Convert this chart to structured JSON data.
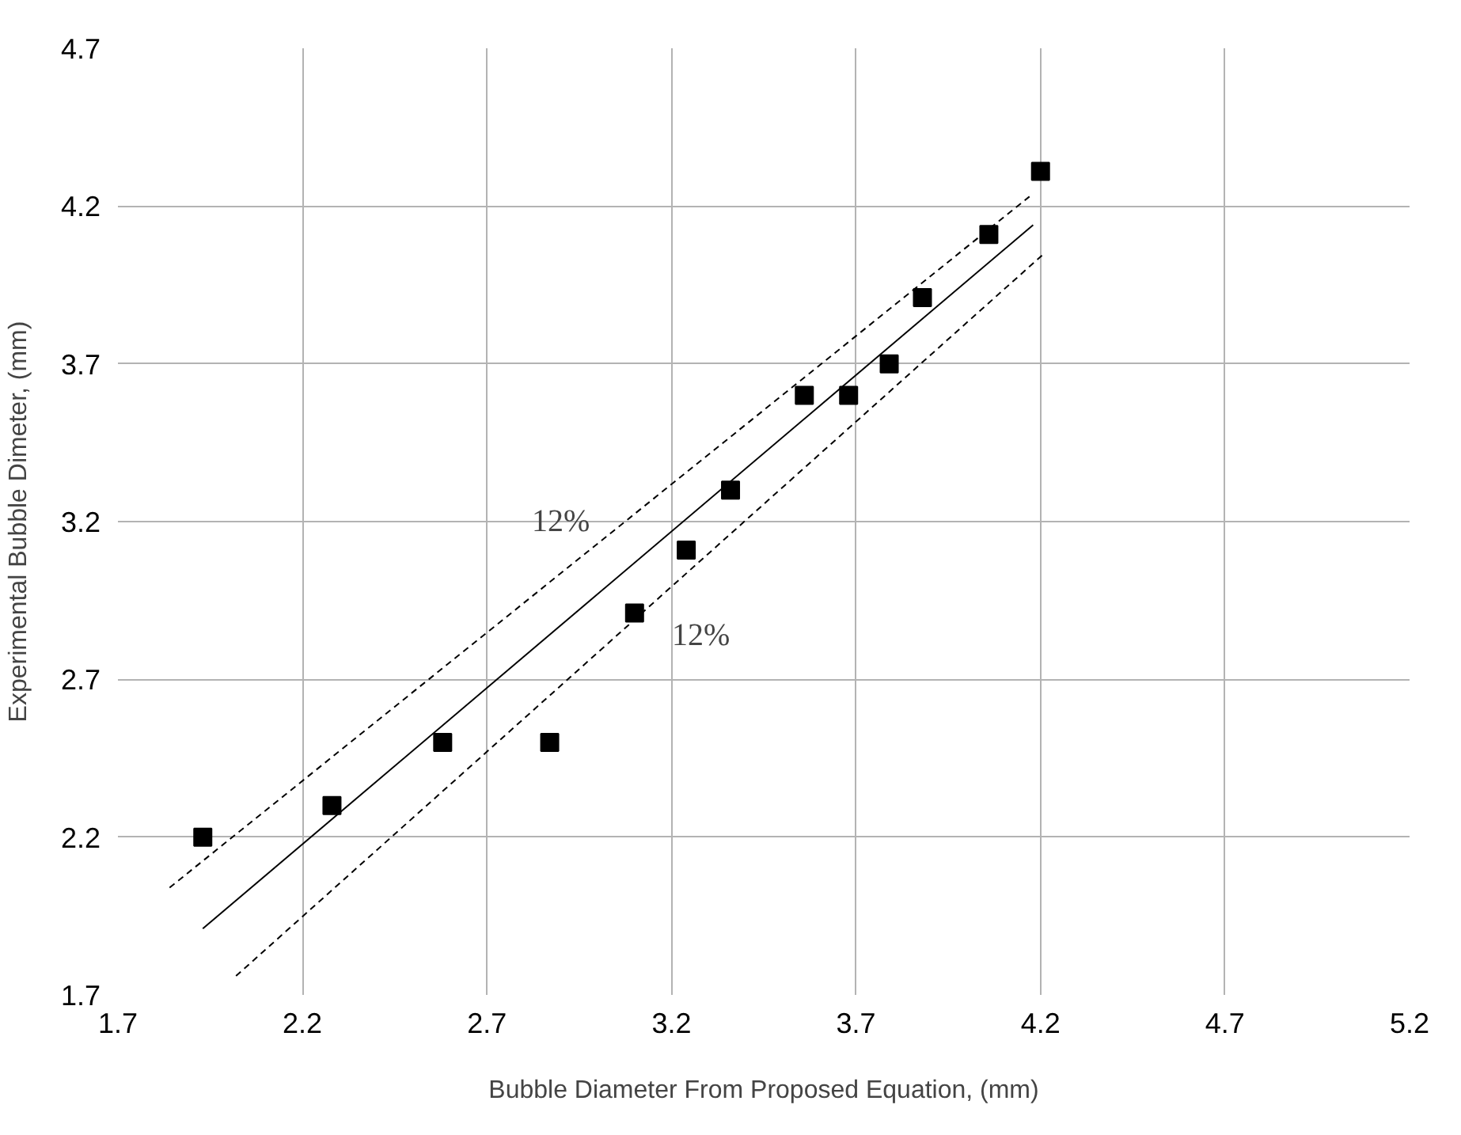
{
  "chart_data": {
    "type": "scatter",
    "xlabel": "Bubble Diameter From Proposed Equation, (mm)",
    "ylabel": "Experimental Bubble Dimeter, (mm)",
    "xlim": [
      1.7,
      5.2
    ],
    "xticks": [
      1.7,
      2.2,
      2.7,
      3.2,
      3.7,
      4.2,
      4.7,
      5.2
    ],
    "ylim": [
      1.7,
      4.7
    ],
    "yticks": [
      1.7,
      2.2,
      2.7,
      3.2,
      3.7,
      4.2,
      4.7
    ],
    "grid": true,
    "series": [
      {
        "marker": "square",
        "color": "#000000",
        "x": [
          1.93,
          2.28,
          2.58,
          2.87,
          3.1,
          3.24,
          3.36,
          3.56,
          3.68,
          3.79,
          3.88,
          4.06,
          4.2
        ],
        "values": [
          2.2,
          2.3,
          2.5,
          2.5,
          2.91,
          3.11,
          3.3,
          3.6,
          3.6,
          3.7,
          3.91,
          4.11,
          4.31
        ]
      },
      {
        "type": "line",
        "color": "#000000",
        "line_style": "solid",
        "x": [
          1.93,
          4.18
        ],
        "values": [
          1.91,
          4.14
        ]
      },
      {
        "type": "line",
        "color": "#000000",
        "line_style": "dashed",
        "x": [
          1.84,
          4.17
        ],
        "values": [
          2.04,
          4.23
        ]
      },
      {
        "type": "line",
        "color": "#000000",
        "line_style": "dashed",
        "x": [
          2.02,
          4.21
        ],
        "values": [
          1.76,
          4.05
        ]
      }
    ],
    "annotations": [
      "12%",
      "12%"
    ]
  }
}
